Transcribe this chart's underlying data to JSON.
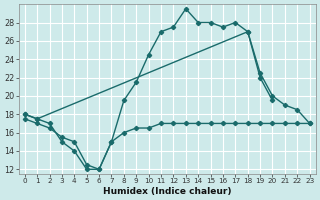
{
  "xlabel": "Humidex (Indice chaleur)",
  "bg_color": "#ceeaea",
  "grid_color": "#b8d8d8",
  "line_color": "#1a6b6b",
  "xlim": [
    -0.5,
    23.5
  ],
  "ylim": [
    11.5,
    30
  ],
  "yticks": [
    12,
    14,
    16,
    18,
    20,
    22,
    24,
    26,
    28
  ],
  "xticks": [
    0,
    1,
    2,
    3,
    4,
    5,
    6,
    7,
    8,
    9,
    10,
    11,
    12,
    13,
    14,
    15,
    16,
    17,
    18,
    19,
    20,
    21,
    22,
    23
  ],
  "line1_x": [
    0,
    1,
    2,
    3,
    4,
    5,
    6,
    7,
    8,
    9,
    10,
    11,
    12,
    13,
    14,
    15,
    16,
    17,
    18,
    19,
    20,
    21,
    22,
    23
  ],
  "line1_y": [
    18,
    17.5,
    17,
    15,
    14,
    12,
    12,
    15,
    19.5,
    21.5,
    24.5,
    27,
    27.5,
    29.5,
    28,
    28,
    27.5,
    28,
    27,
    22,
    19.5,
    null,
    null,
    null
  ],
  "line2_x": [
    0,
    1,
    2,
    3,
    4,
    5,
    6,
    7,
    8,
    9,
    10,
    11,
    12,
    13,
    14,
    15,
    16,
    17,
    18,
    19,
    20,
    21,
    22,
    23
  ],
  "line2_y": [
    18,
    17.5,
    null,
    null,
    null,
    null,
    null,
    null,
    null,
    null,
    null,
    null,
    null,
    null,
    null,
    null,
    null,
    null,
    27,
    22.5,
    20,
    19,
    18.5,
    17
  ],
  "line3_x": [
    0,
    1,
    2,
    3,
    4,
    5,
    6,
    7,
    8,
    9,
    10,
    11,
    12,
    13,
    14,
    15,
    16,
    17,
    18,
    19,
    20,
    21,
    22,
    23
  ],
  "line3_y": [
    17.5,
    17,
    16.5,
    15.5,
    15,
    12.5,
    12,
    15,
    16,
    16.5,
    16.5,
    17,
    17,
    17,
    17,
    17,
    17,
    17,
    17,
    17,
    17,
    17,
    17,
    17
  ]
}
